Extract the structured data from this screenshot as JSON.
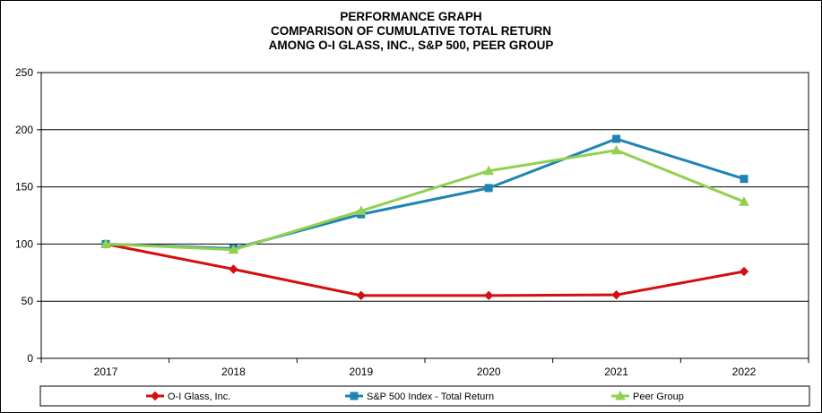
{
  "chart_data": {
    "type": "line",
    "title": "PERFORMANCE GRAPH",
    "subtitle_lines": [
      "COMPARISON OF CUMULATIVE TOTAL RETURN",
      "AMONG O-I GLASS, INC., S&P 500, PEER GROUP"
    ],
    "categories": [
      "2017",
      "2018",
      "2019",
      "2020",
      "2021",
      "2022"
    ],
    "ylim": [
      0,
      250
    ],
    "yticks": [
      0,
      50,
      100,
      150,
      200,
      250
    ],
    "grid": true,
    "legend_position": "bottom",
    "series": [
      {
        "name": "O-I Glass, Inc.",
        "color": "#d40f0f",
        "marker": "diamond",
        "values": [
          100,
          78,
          55,
          55,
          55.5,
          76
        ]
      },
      {
        "name": "S&P 500 Index - Total Return",
        "color": "#1e84b4",
        "marker": "square",
        "values": [
          100,
          96,
          126,
          149,
          192,
          157
        ]
      },
      {
        "name": "Peer Group",
        "color": "#92d050",
        "marker": "triangle",
        "values": [
          100,
          95,
          129,
          164,
          182,
          137
        ]
      }
    ]
  }
}
